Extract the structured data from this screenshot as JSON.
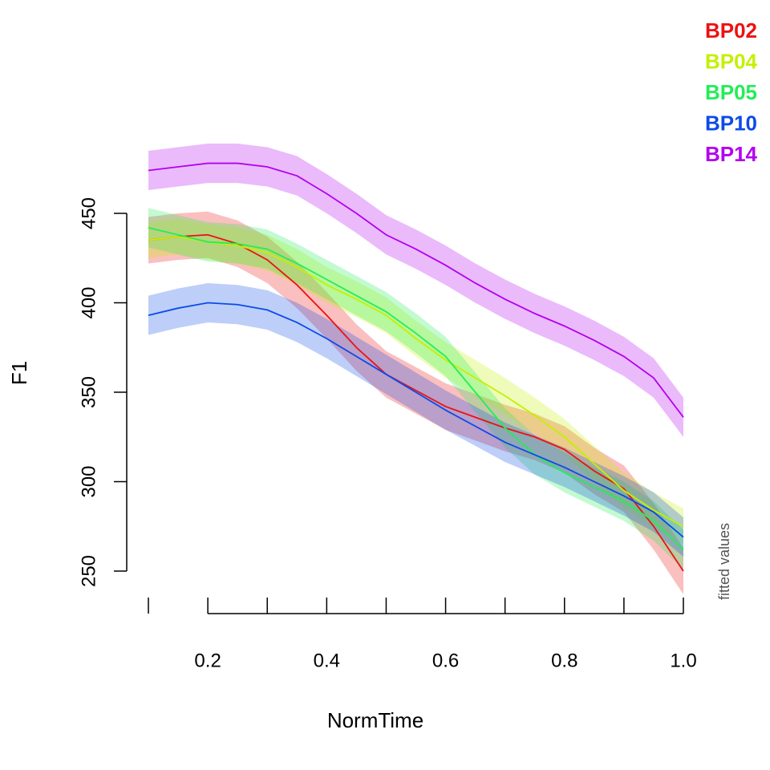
{
  "chart_data": {
    "type": "line",
    "x_label": "NormTime",
    "y_label": "F1",
    "annotation": "fitted values",
    "x": [
      0.1,
      0.15,
      0.2,
      0.25,
      0.3,
      0.35,
      0.4,
      0.45,
      0.5,
      0.55,
      0.6,
      0.65,
      0.7,
      0.75,
      0.8,
      0.85,
      0.9,
      0.95,
      1.0
    ],
    "series": [
      {
        "name": "BP02",
        "color": "#ee1111",
        "ci": 13,
        "values": [
          435,
          437,
          438,
          433,
          424,
          410,
          393,
          375,
          360,
          351,
          342,
          336,
          330,
          325,
          318,
          306,
          296,
          275,
          250
        ]
      },
      {
        "name": "BP04",
        "color": "#c4f000",
        "ci": 10,
        "values": [
          435,
          437,
          434,
          432,
          428,
          420,
          410,
          402,
          393,
          380,
          368,
          358,
          348,
          337,
          325,
          310,
          295,
          284,
          275
        ]
      },
      {
        "name": "BP05",
        "color": "#22ee55",
        "ci": 11,
        "values": [
          442,
          438,
          434,
          433,
          430,
          422,
          413,
          404,
          395,
          383,
          370,
          350,
          330,
          315,
          305,
          297,
          289,
          278,
          262
        ]
      },
      {
        "name": "BP10",
        "color": "#0b4be8",
        "ci": 11,
        "values": [
          393,
          397,
          400,
          399,
          396,
          389,
          380,
          370,
          360,
          350,
          340,
          331,
          322,
          315,
          308,
          300,
          292,
          283,
          269
        ]
      },
      {
        "name": "BP14",
        "color": "#b300f0",
        "ci": 11,
        "values": [
          474,
          476,
          478,
          478,
          476,
          471,
          461,
          450,
          438,
          430,
          421,
          411,
          402,
          394,
          387,
          379,
          370,
          358,
          336
        ]
      }
    ],
    "xlim": [
      0.1,
      1.0
    ],
    "ylim": [
      250,
      490
    ],
    "xticks": [
      0.2,
      0.4,
      0.6,
      0.8,
      {
        "value": 1.0,
        "label": "1.0"
      }
    ],
    "xminorticks": [
      0.1,
      0.3,
      0.5,
      0.7,
      0.9
    ],
    "yticks": [
      250,
      300,
      350,
      400,
      450
    ],
    "legend": "top-right"
  }
}
